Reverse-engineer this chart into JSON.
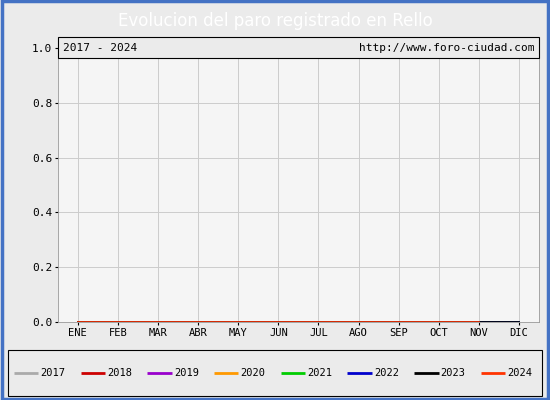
{
  "title": "Evolucion del paro registrado en Rello",
  "title_color": "#ffffff",
  "title_bg_color": "#4472c4",
  "subtitle_left": "2017 - 2024",
  "subtitle_right": "http://www.foro-ciudad.com",
  "months": [
    "ENE",
    "FEB",
    "MAR",
    "ABR",
    "MAY",
    "JUN",
    "JUL",
    "AGO",
    "SEP",
    "OCT",
    "NOV",
    "DIC"
  ],
  "years": [
    2017,
    2018,
    2019,
    2020,
    2021,
    2022,
    2023,
    2024
  ],
  "year_colors": [
    "#aaaaaa",
    "#cc0000",
    "#9900cc",
    "#ff9900",
    "#00cc00",
    "#0000cc",
    "#000000",
    "#ff3300"
  ],
  "ylim": [
    0.0,
    1.0
  ],
  "yticks": [
    0.0,
    0.2,
    0.4,
    0.6,
    0.8,
    1.0
  ],
  "background_color": "#ebebeb",
  "plot_bg_color": "#f5f5f5",
  "grid_color": "#cccccc",
  "border_color": "#4472c4"
}
